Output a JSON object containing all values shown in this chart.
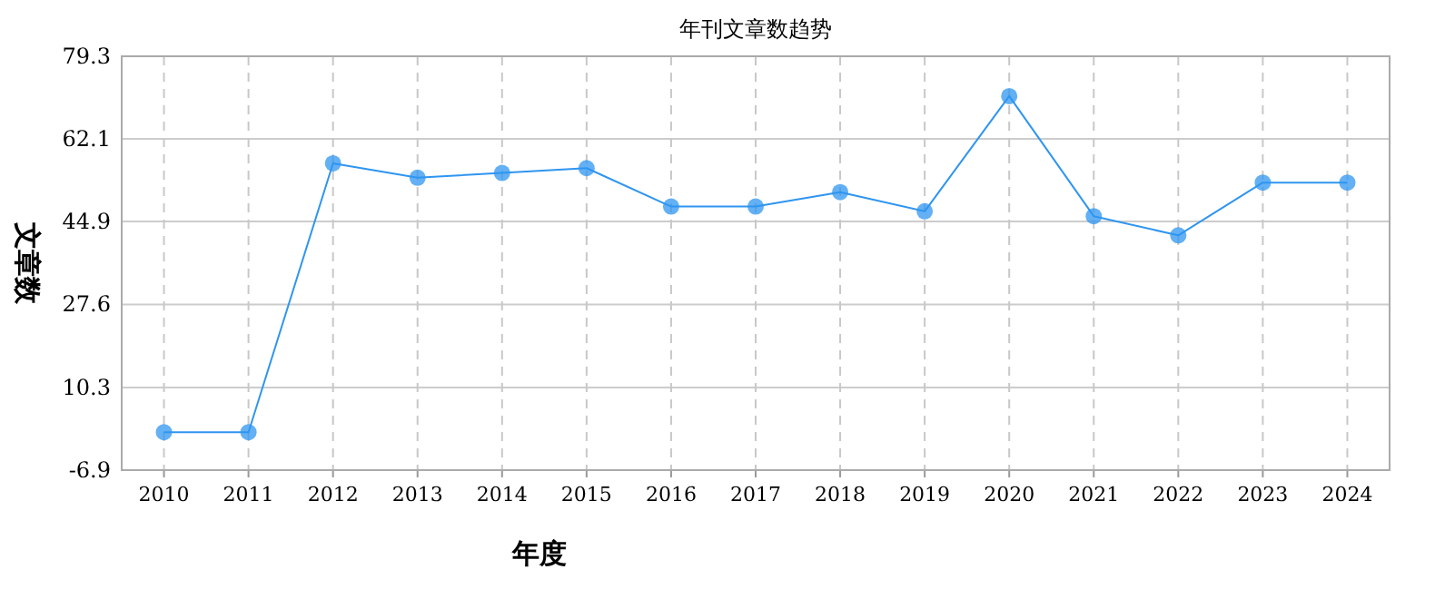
{
  "chart_data": {
    "type": "line",
    "title": "年刊文章数趋势",
    "xlabel": "年度",
    "ylabel": "文章数",
    "categories": [
      "2010",
      "2011",
      "2012",
      "2013",
      "2014",
      "2015",
      "2016",
      "2017",
      "2018",
      "2019",
      "2020",
      "2021",
      "2022",
      "2023",
      "2024"
    ],
    "values": [
      1,
      1,
      57,
      54,
      55,
      56,
      48,
      48,
      51,
      47,
      71,
      46,
      42,
      53,
      53
    ],
    "color": "#2f95f0",
    "ylim": [
      -6.9,
      79.3
    ],
    "yticks": [
      -6.9,
      10.3,
      27.6,
      44.9,
      62.1,
      79.3
    ],
    "grid": true,
    "marker": "circle"
  }
}
